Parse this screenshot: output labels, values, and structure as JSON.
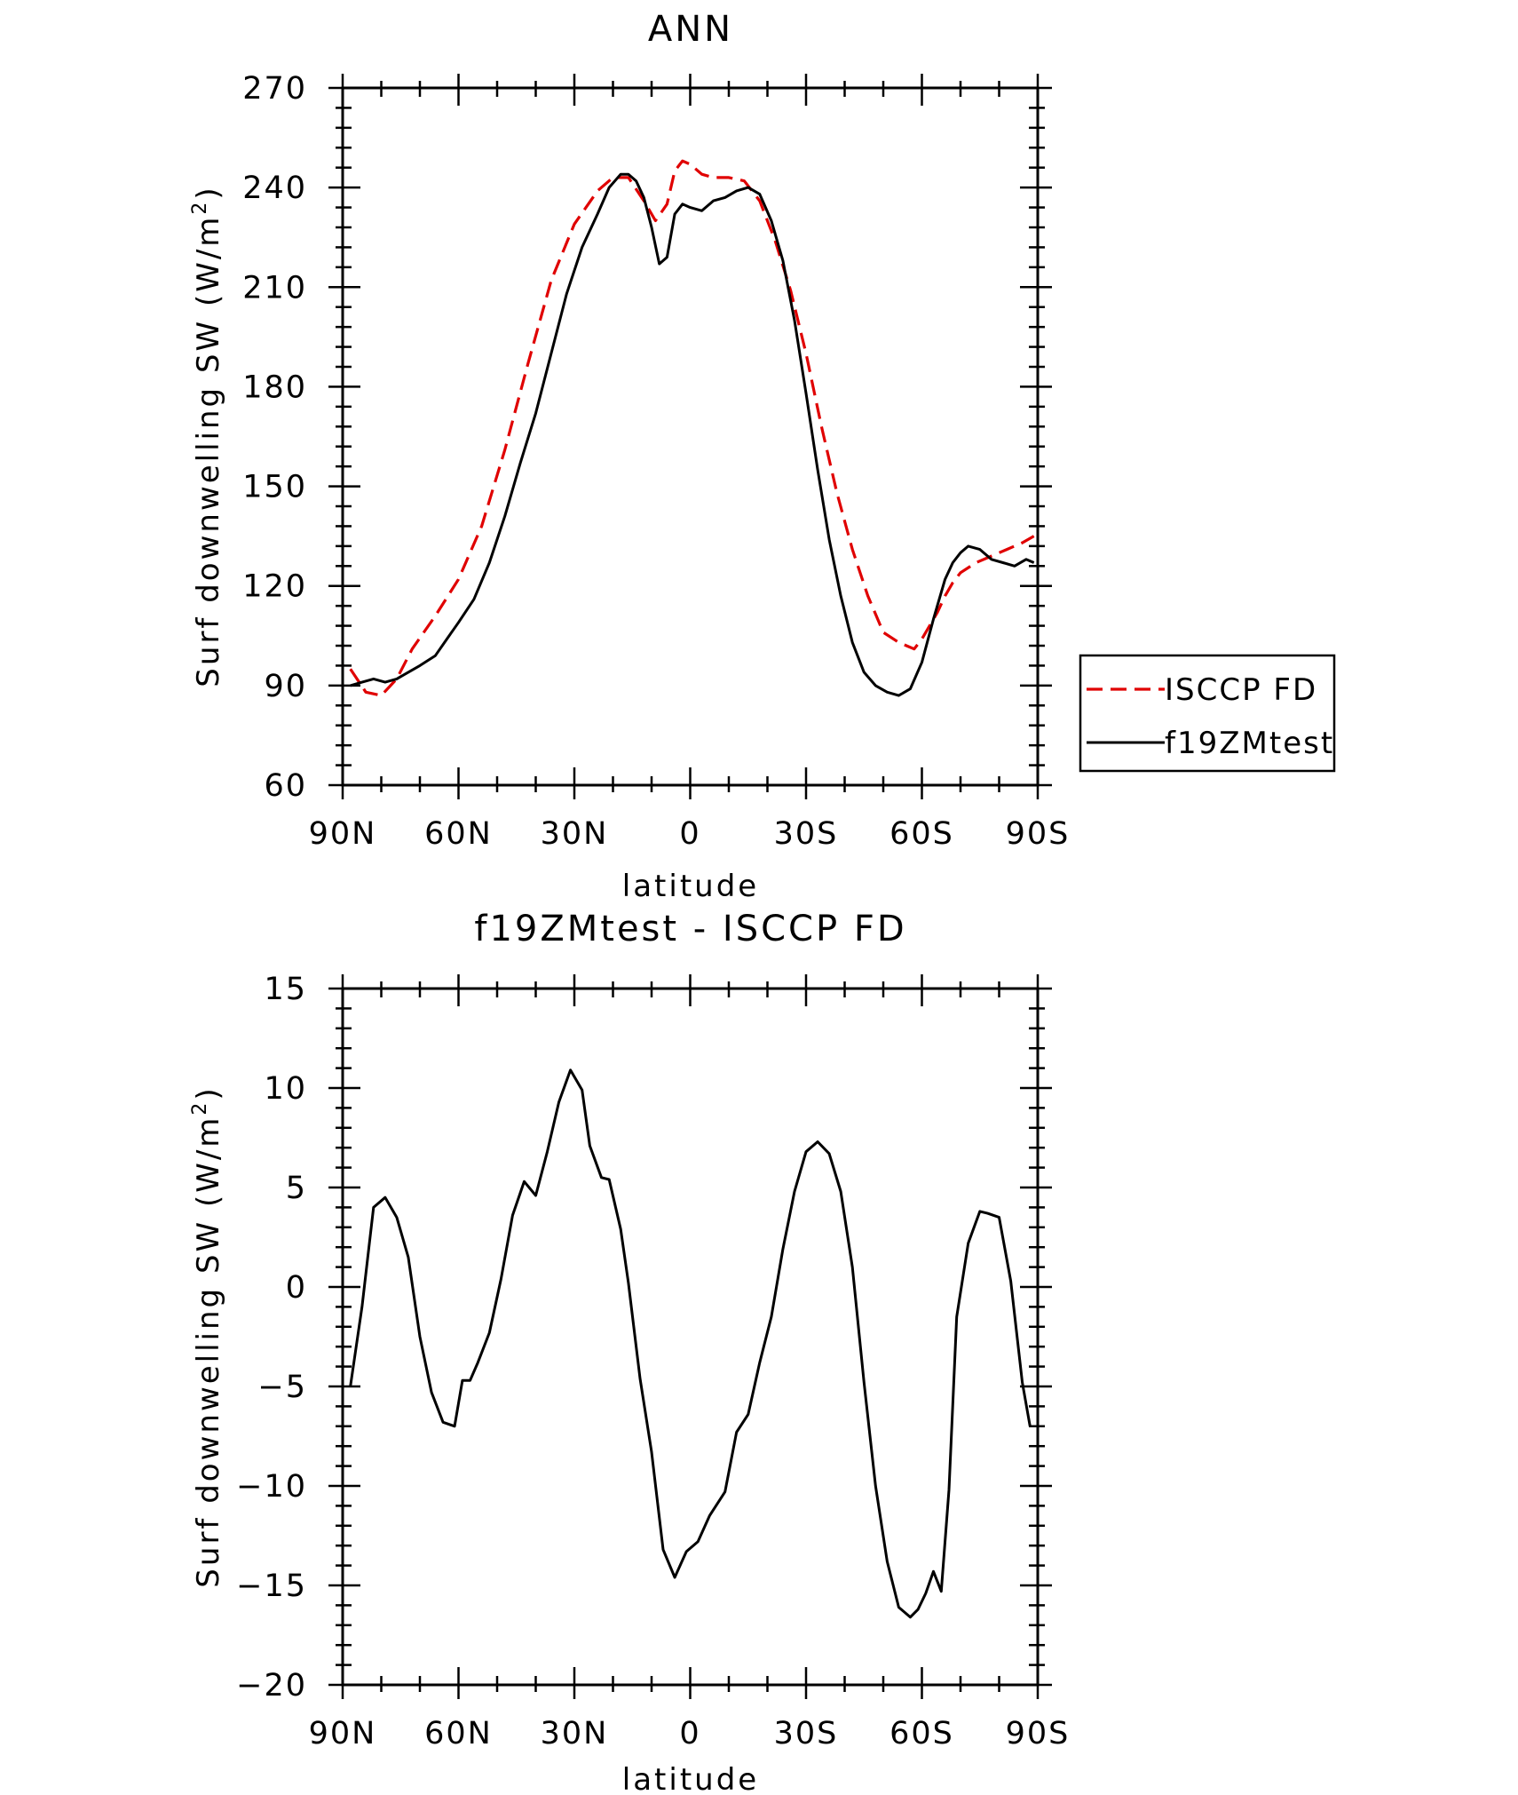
{
  "colors": {
    "model": "#000000",
    "obs": "#e00000",
    "frame": "#000000"
  },
  "x_tick_labels": [
    "90N",
    "60N",
    "30N",
    "0",
    "30S",
    "60S",
    "90S"
  ],
  "chart_data": [
    {
      "type": "line",
      "title": "ANN",
      "xlabel": "latitude",
      "ylabel_main": "Surf downwelling SW (W/m",
      "ylabel_sup": "2",
      "ylabel_close": ")",
      "xlim": [
        90,
        -90
      ],
      "ylim": [
        60,
        270
      ],
      "yticks": [
        60,
        90,
        120,
        150,
        180,
        210,
        240,
        270
      ],
      "legend": {
        "placement": "right",
        "entries": [
          "ISCCP FD",
          "f19ZMtest"
        ]
      },
      "series": [
        {
          "name": "ISCCP FD",
          "style": "dashed",
          "color": "#e00000",
          "x": [
            88,
            84,
            80,
            76,
            72,
            66,
            60,
            54,
            48,
            42,
            36,
            30,
            24,
            20,
            16,
            12,
            9,
            6,
            4,
            2,
            0,
            -3,
            -6,
            -10,
            -14,
            -18,
            -22,
            -26,
            -30,
            -34,
            -38,
            -42,
            -46,
            -50,
            -54,
            -56,
            -58,
            -60,
            -62,
            -64,
            -66,
            -68,
            -70,
            -74,
            -78,
            -82,
            -86,
            -89
          ],
          "y": [
            95,
            88,
            87,
            92,
            101,
            111,
            122,
            138,
            161,
            187,
            212,
            229,
            239,
            243,
            243,
            236,
            230,
            235,
            245,
            248,
            247,
            244,
            243,
            243,
            242,
            236,
            224,
            209,
            190,
            168,
            148,
            131,
            117,
            106,
            103,
            102,
            101,
            104,
            108,
            112,
            117,
            121,
            124,
            127,
            129,
            131,
            133,
            135
          ]
        },
        {
          "name": "f19ZMtest",
          "style": "solid",
          "color": "#000000",
          "x": [
            88,
            85,
            82,
            79,
            76,
            73,
            70,
            66,
            63,
            60,
            56,
            52,
            48,
            44,
            40,
            36,
            32,
            28,
            24,
            21,
            18,
            16,
            14,
            12,
            10,
            8,
            6,
            4,
            2,
            0,
            -3,
            -6,
            -9,
            -12,
            -15,
            -18,
            -21,
            -24,
            -27,
            -30,
            -33,
            -36,
            -39,
            -42,
            -45,
            -48,
            -51,
            -54,
            -57,
            -60,
            -63,
            -66,
            -68,
            -70,
            -72,
            -75,
            -78,
            -81,
            -84,
            -87,
            -89
          ],
          "y": [
            90,
            91,
            92,
            91,
            92,
            94,
            96,
            99,
            104,
            109,
            116,
            127,
            141,
            157,
            172,
            190,
            208,
            222,
            232,
            240,
            244,
            244,
            242,
            237,
            228,
            217,
            219,
            232,
            235,
            234,
            233,
            236,
            237,
            239,
            240,
            238,
            230,
            218,
            200,
            178,
            155,
            134,
            117,
            103,
            94,
            90,
            88,
            87,
            89,
            97,
            110,
            122,
            127,
            130,
            132,
            131,
            128,
            127,
            126,
            128,
            127
          ]
        }
      ]
    },
    {
      "type": "line",
      "title": "f19ZMtest - ISCCP FD",
      "xlabel": "latitude",
      "ylabel_main": "Surf downwelling SW (W/m",
      "ylabel_sup": "2",
      "ylabel_close": ")",
      "xlim": [
        90,
        -90
      ],
      "ylim": [
        -20,
        15
      ],
      "yticks": [
        -20,
        -15,
        -10,
        -5,
        0,
        5,
        10,
        15
      ],
      "series": [
        {
          "style": "solid",
          "color": "#000000",
          "x": [
            88,
            85,
            82,
            79,
            76,
            73,
            70,
            67,
            64,
            61,
            59,
            57,
            55,
            52,
            49,
            46,
            43,
            40,
            37,
            34,
            31,
            28,
            26,
            23,
            21,
            18,
            16,
            13,
            10,
            7,
            4,
            1,
            -2,
            -5,
            -9,
            -12,
            -15,
            -18,
            -21,
            -24,
            -27,
            -30,
            -33,
            -36,
            -39,
            -42,
            -45,
            -48,
            -51,
            -54,
            -57,
            -59,
            -61,
            -63,
            -65,
            -67,
            -69,
            -72,
            -75,
            -77,
            -80,
            -83,
            -86,
            -88
          ],
          "y": [
            -5,
            -1,
            4,
            4.5,
            3.5,
            1.5,
            -2.5,
            -5.3,
            -6.8,
            -7,
            -4.7,
            -4.7,
            -3.8,
            -2.3,
            0.4,
            3.6,
            5.3,
            4.6,
            6.8,
            9.3,
            10.9,
            9.9,
            7.1,
            5.5,
            5.4,
            2.9,
            0.2,
            -4.6,
            -8.3,
            -13.2,
            -14.6,
            -13.3,
            -12.8,
            -11.5,
            -10.3,
            -7.3,
            -6.4,
            -3.8,
            -1.5,
            1.9,
            4.8,
            6.8,
            7.3,
            6.7,
            4.8,
            1,
            -4.8,
            -10,
            -13.8,
            -16.1,
            -16.6,
            -16.2,
            -15.4,
            -14.3,
            -15.3,
            -10.2,
            -1.5,
            2.2,
            3.8,
            3.7,
            3.5,
            0.3,
            -4.8,
            -7
          ]
        }
      ]
    }
  ]
}
